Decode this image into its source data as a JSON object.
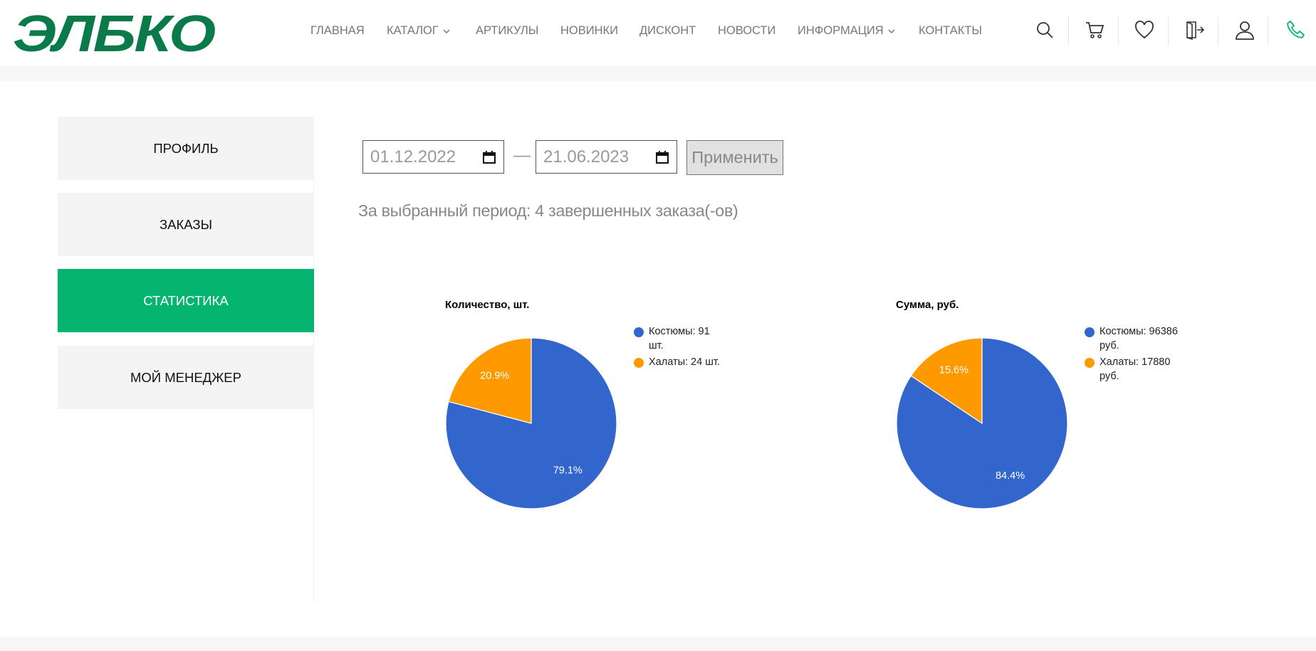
{
  "header": {
    "logo": "ЭЛБКО",
    "nav": [
      {
        "label": "ГЛАВНАЯ"
      },
      {
        "label": "КАТАЛОГ",
        "dropdown": true
      },
      {
        "label": "АРТИКУЛЫ"
      },
      {
        "label": "НОВИНКИ"
      },
      {
        "label": "ДИСКОНТ"
      },
      {
        "label": "НОВОСТИ"
      },
      {
        "label": "ИНФОРМАЦИЯ",
        "dropdown": true
      },
      {
        "label": "КОНТАКТЫ"
      }
    ]
  },
  "sidebar": {
    "items": [
      "ПРОФИЛЬ",
      "ЗАКАЗЫ",
      "СТАТИСТИКА",
      "МОЙ МЕНЕДЖЕР"
    ],
    "active": 2
  },
  "filter": {
    "date_from": "01.12.2022",
    "separator": "—",
    "date_to": "21.06.2023",
    "button": "Применить"
  },
  "summary": "За выбранный период: 4 завершенных заказа(-ов)",
  "chart_data": [
    {
      "type": "pie",
      "title": "Количество, шт.",
      "categories": [
        "Костюмы: 91 шт.",
        "Халаты: 24 шт."
      ],
      "values": [
        79.1,
        20.9
      ],
      "value_labels": [
        "79.1%",
        "20.9%"
      ],
      "colors": [
        "#3366cc",
        "#ff9900"
      ]
    },
    {
      "type": "pie",
      "title": "Сумма, руб.",
      "categories": [
        "Костюмы: 96386 руб.",
        "Халаты: 17880 руб."
      ],
      "values": [
        84.4,
        15.6
      ],
      "value_labels": [
        "84.4%",
        "15.6%"
      ],
      "colors": [
        "#3366cc",
        "#ff9900"
      ]
    }
  ]
}
